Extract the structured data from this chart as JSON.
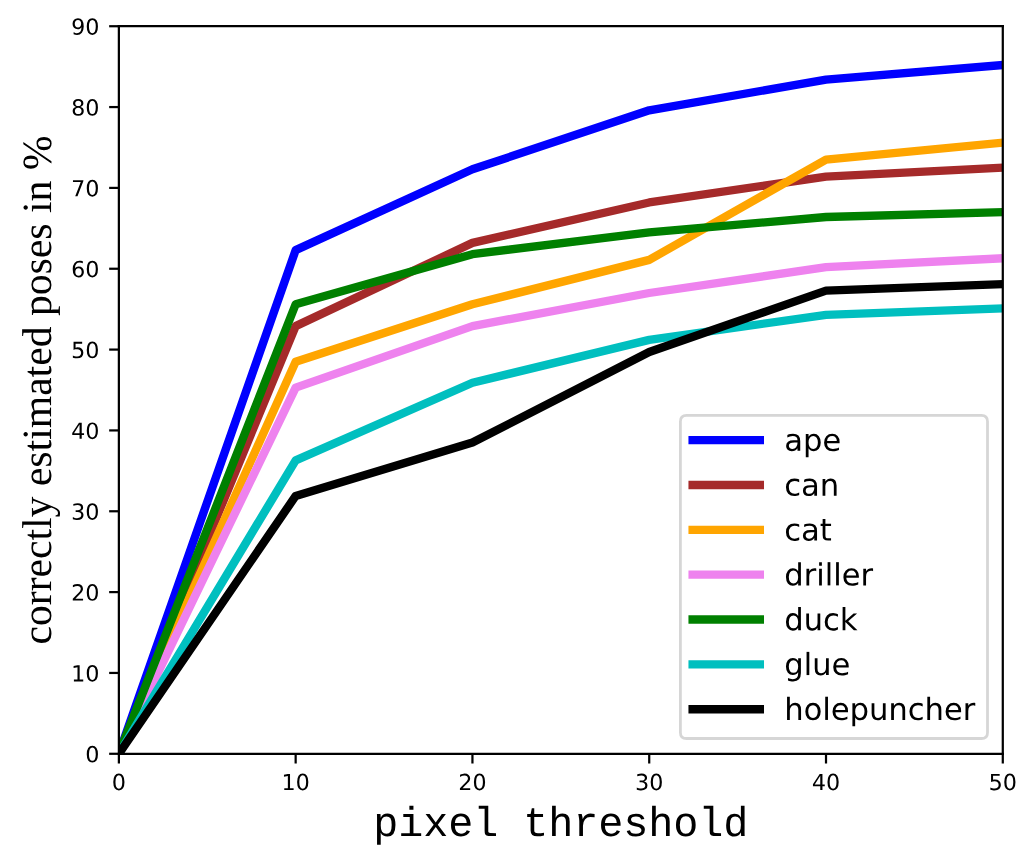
{
  "chart_data": {
    "type": "line",
    "xlabel": "pixel threshold",
    "ylabel": "correctly estimated poses in %",
    "x": [
      0,
      10,
      20,
      30,
      40,
      50
    ],
    "series": [
      {
        "name": "ape",
        "color": "#0000ff",
        "values": [
          0,
          62.3,
          72.3,
          79.6,
          83.4,
          85.2
        ]
      },
      {
        "name": "can",
        "color": "#a52a2a",
        "values": [
          0,
          52.9,
          63.2,
          68.2,
          71.4,
          72.5
        ]
      },
      {
        "name": "cat",
        "color": "#ffa500",
        "values": [
          0,
          48.5,
          55.6,
          61.1,
          73.5,
          75.6
        ]
      },
      {
        "name": "driller",
        "color": "#ee82ee",
        "values": [
          0,
          45.3,
          52.9,
          57.0,
          60.2,
          61.3
        ]
      },
      {
        "name": "duck",
        "color": "#008000",
        "values": [
          0,
          55.6,
          61.8,
          64.5,
          66.4,
          67.0
        ]
      },
      {
        "name": "glue",
        "color": "#00bfbf",
        "values": [
          0,
          36.3,
          45.9,
          51.2,
          54.3,
          55.1
        ]
      },
      {
        "name": "holepuncher",
        "color": "#000000",
        "values": [
          0,
          31.9,
          38.5,
          49.7,
          57.3,
          58.1
        ]
      }
    ],
    "xlim": [
      0,
      50
    ],
    "ylim": [
      0,
      90
    ],
    "xticks": [
      0,
      10,
      20,
      30,
      40,
      50
    ],
    "yticks": [
      0,
      10,
      20,
      30,
      40,
      50,
      60,
      70,
      80,
      90
    ],
    "legend": "bottom right",
    "grid": false
  }
}
